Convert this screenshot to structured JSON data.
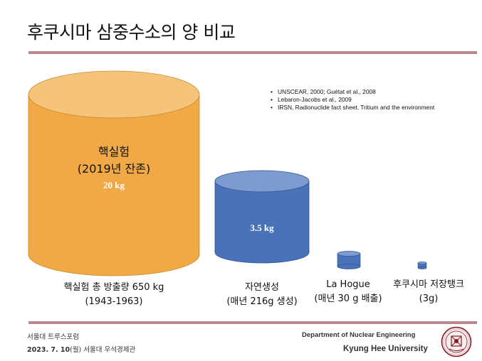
{
  "slide": {
    "title": "후쿠시마 삼중수소의 양 비교",
    "references": [
      "UNSCEAR, 2000; Guétat et al., 2008",
      "Lebaron-Jacobs et al., 2009",
      "IRSN, Radionuclide fact sheet, Tritium and the environment"
    ],
    "colors": {
      "orange": "#f0a944",
      "blue": "#4a72b8",
      "rule": "#b88a8f"
    }
  },
  "cylinders": {
    "nuclear_test": {
      "inner_title": "핵실험",
      "inner_subtitle": "(2019년 잔존)",
      "inner_value": "20 kg",
      "caption_line1": "핵실험 총 방출량 650 kg",
      "caption_line2": "(1943-1963)"
    },
    "natural": {
      "inner_value": "3.5 kg",
      "caption_line1": "자연생성",
      "caption_line2": "(매년 216g 생성)"
    },
    "la_hogue": {
      "caption_line1": "La Hogue",
      "caption_line2": "(매년 30 g 배출)"
    },
    "fukushima": {
      "caption_line1": "후쿠시마 저장탱크",
      "caption_line2": "(3g)"
    }
  },
  "footer": {
    "forum": "서울대 트루스포럼",
    "date_bold": "2023. 7. 10",
    "date_rest": "(월) 서울대 우석경제관",
    "department": "Department of Nuclear Engineering",
    "university": "Kyung Hee University",
    "seal_icon": "university-seal-icon"
  }
}
